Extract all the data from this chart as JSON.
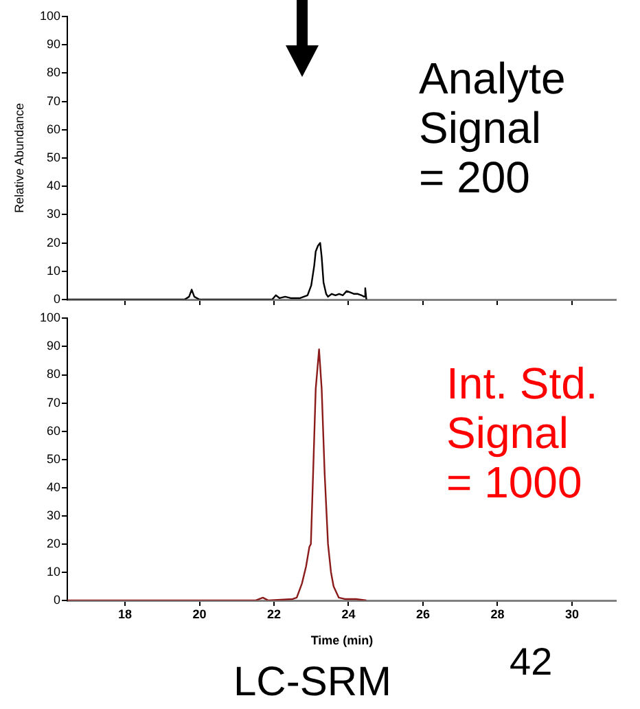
{
  "chart_data": [
    {
      "type": "line",
      "ylabel": "Relative Abundance",
      "tick_labels": "y",
      "xlim": [
        16.45,
        31.2
      ],
      "xticks": [
        18,
        20,
        22,
        24,
        26,
        28,
        30
      ],
      "ylim": [
        0,
        100
      ],
      "yticks": [
        0,
        10,
        20,
        30,
        40,
        50,
        60,
        70,
        80,
        90,
        100
      ],
      "marker": "none",
      "annotations": [
        "Analyte\nSignal\n= 200"
      ],
      "series": [
        {
          "color": "#000000",
          "x": [
            16.45,
            19.6,
            19.72,
            19.79,
            19.86,
            20.0,
            21.95,
            22.05,
            22.15,
            22.3,
            22.45,
            22.7,
            22.9,
            23.0,
            23.08,
            23.12,
            23.18,
            23.24,
            23.28,
            23.33,
            23.4,
            23.45,
            23.55,
            23.65,
            23.75,
            23.85,
            23.95,
            24.05,
            24.15,
            24.25,
            24.35,
            24.42,
            24.45,
            24.48
          ],
          "values": [
            0,
            0,
            1,
            3.5,
            1,
            0,
            0,
            1.5,
            0.5,
            1,
            0.5,
            0.5,
            1.5,
            5,
            12,
            17,
            19,
            20,
            15,
            6,
            2,
            1,
            2,
            1.5,
            2,
            1.5,
            3,
            2.5,
            2,
            2,
            1.5,
            1,
            4,
            0
          ]
        }
      ]
    },
    {
      "type": "line",
      "xlabel": "Time (min)",
      "xlim": [
        16.45,
        31.2
      ],
      "xticks": [
        18,
        20,
        22,
        24,
        26,
        28,
        30
      ],
      "ylim": [
        0,
        100
      ],
      "yticks": [
        0,
        10,
        20,
        30,
        40,
        50,
        60,
        70,
        80,
        90,
        100
      ],
      "marker": "none",
      "annotations": [
        "Int. Std.\nSignal\n= 1000",
        "42",
        "LC-SRM"
      ],
      "series": [
        {
          "color": "#8b1a1a",
          "x": [
            16.45,
            21.5,
            21.7,
            21.85,
            22.5,
            22.61,
            22.75,
            22.86,
            22.95,
            22.99,
            23.05,
            23.12,
            23.21,
            23.28,
            23.36,
            23.45,
            23.53,
            23.6,
            23.74,
            23.9,
            24.2,
            24.48
          ],
          "values": [
            0,
            0,
            1,
            0,
            0.5,
            1,
            6,
            12,
            19,
            20,
            45,
            75,
            89,
            75,
            45,
            20,
            10,
            5,
            1,
            0.5,
            0.5,
            0
          ]
        }
      ]
    }
  ]
}
